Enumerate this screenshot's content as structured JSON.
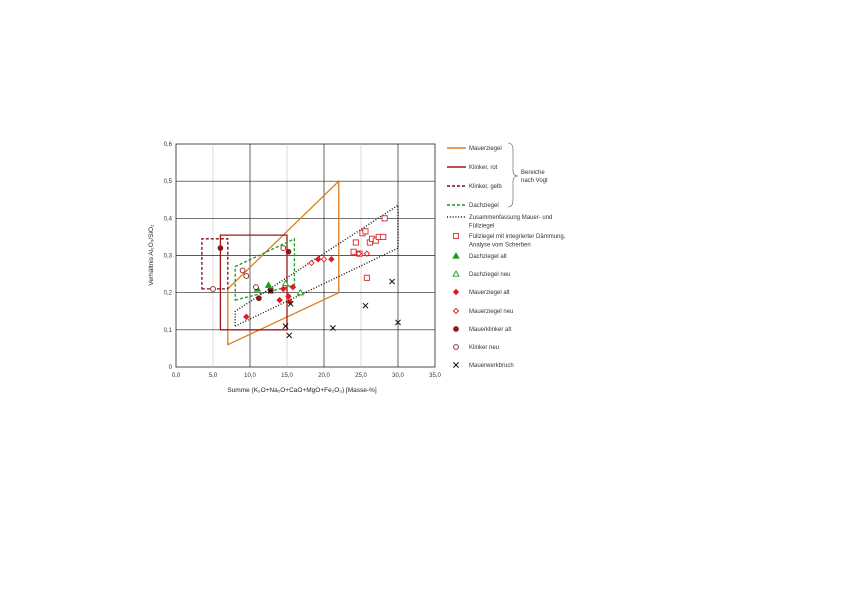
{
  "chart_data": {
    "type": "scatter",
    "xlabel": "Summe (K₂O+Na₂O+CaO+MgO+Fe₂O₃) [Masse-%]",
    "ylabel": "Verhältnis Al₂O₃/SiO₂",
    "xlim": [
      0,
      35
    ],
    "ylim": [
      0,
      0.6
    ],
    "x_ticks": [
      "0,0",
      "5,0",
      "10,0",
      "15,0",
      "20,0",
      "25,0",
      "30,0",
      "35,0"
    ],
    "y_ticks": [
      "0",
      "0,1",
      "0,2",
      "0,3",
      "0,4",
      "0,5",
      "0,6"
    ],
    "grid": true,
    "legend_position": "right",
    "brace_label": [
      "Bereiche",
      "nach Vogt"
    ],
    "regions": [
      {
        "name": "Mauerziegel",
        "style": "solid",
        "color": "#e07b1e",
        "points": [
          [
            7.0,
            0.06
          ],
          [
            22.0,
            0.2
          ],
          [
            22.0,
            0.5
          ],
          [
            7.0,
            0.21
          ]
        ]
      },
      {
        "name": "Klinker, rot",
        "style": "solid",
        "color": "#a01818",
        "points": [
          [
            6.0,
            0.1
          ],
          [
            15.0,
            0.1
          ],
          [
            15.0,
            0.355
          ],
          [
            6.0,
            0.355
          ]
        ]
      },
      {
        "name": "Klinker, gelb",
        "style": "dashed",
        "color": "#7a1010",
        "points": [
          [
            3.5,
            0.21
          ],
          [
            7.0,
            0.21
          ],
          [
            7.0,
            0.345
          ],
          [
            3.5,
            0.345
          ]
        ]
      },
      {
        "name": "Dachziegel",
        "style": "dashed",
        "color": "#1a9a1a",
        "points": [
          [
            8.0,
            0.18
          ],
          [
            16.0,
            0.22
          ],
          [
            16.0,
            0.345
          ],
          [
            8.0,
            0.27
          ]
        ]
      },
      {
        "name": "Zusammenfassung Mauer- und Füllziegel",
        "style": "dotted",
        "color": "#111111",
        "points": [
          [
            8.0,
            0.11
          ],
          [
            30.0,
            0.32
          ],
          [
            30.0,
            0.435
          ],
          [
            8.0,
            0.15
          ]
        ]
      }
    ],
    "series": [
      {
        "name": "Füllziegel mit integrierter Dämmung, Analyse vom Scherben",
        "marker": "square-open",
        "color": "#d42a2a",
        "points": [
          [
            24.0,
            0.31
          ],
          [
            24.3,
            0.335
          ],
          [
            24.8,
            0.305
          ],
          [
            25.2,
            0.36
          ],
          [
            25.6,
            0.365
          ],
          [
            26.2,
            0.335
          ],
          [
            26.5,
            0.345
          ],
          [
            27.0,
            0.34
          ],
          [
            27.4,
            0.35
          ],
          [
            28.0,
            0.35
          ],
          [
            28.2,
            0.4
          ],
          [
            25.8,
            0.24
          ]
        ]
      },
      {
        "name": "Dachziegel alt",
        "marker": "triangle-filled",
        "color": "#1a9a1a",
        "points": [
          [
            11.0,
            0.21
          ],
          [
            12.5,
            0.22
          ]
        ]
      },
      {
        "name": "Dachziegel neu",
        "marker": "triangle-open",
        "color": "#1a9a1a",
        "points": [
          [
            14.8,
            0.225
          ],
          [
            16.8,
            0.2
          ]
        ]
      },
      {
        "name": "Mauerziegel alt",
        "marker": "diamond-filled",
        "color": "#e31a1a",
        "points": [
          [
            9.5,
            0.135
          ],
          [
            14.0,
            0.18
          ],
          [
            14.5,
            0.21
          ],
          [
            15.2,
            0.19
          ],
          [
            15.4,
            0.175
          ],
          [
            15.8,
            0.215
          ],
          [
            19.2,
            0.29
          ],
          [
            21.0,
            0.29
          ]
        ]
      },
      {
        "name": "Mauerziegel neu",
        "marker": "diamond-open",
        "color": "#e31a1a",
        "points": [
          [
            18.3,
            0.28
          ],
          [
            20.0,
            0.29
          ],
          [
            24.7,
            0.305
          ],
          [
            25.8,
            0.305
          ]
        ]
      },
      {
        "name": "Mauerklinker alt",
        "marker": "circle-filled",
        "color": "#8b1a1a",
        "points": [
          [
            6.0,
            0.32
          ],
          [
            11.2,
            0.185
          ],
          [
            12.8,
            0.205
          ],
          [
            15.2,
            0.31
          ]
        ]
      },
      {
        "name": "Klinker neu",
        "marker": "circle-open",
        "color": "#8b1a1a",
        "points": [
          [
            5.0,
            0.21
          ],
          [
            9.0,
            0.26
          ],
          [
            9.5,
            0.245
          ],
          [
            10.8,
            0.215
          ],
          [
            14.5,
            0.32
          ]
        ]
      },
      {
        "name": "Mauerwerkbruch",
        "marker": "x",
        "color": "#111111",
        "points": [
          [
            14.8,
            0.11
          ],
          [
            15.3,
            0.085
          ],
          [
            15.5,
            0.17
          ],
          [
            21.2,
            0.105
          ],
          [
            25.6,
            0.165
          ],
          [
            29.2,
            0.23
          ],
          [
            30.0,
            0.12
          ],
          [
            12.8,
            0.205
          ]
        ]
      }
    ]
  }
}
